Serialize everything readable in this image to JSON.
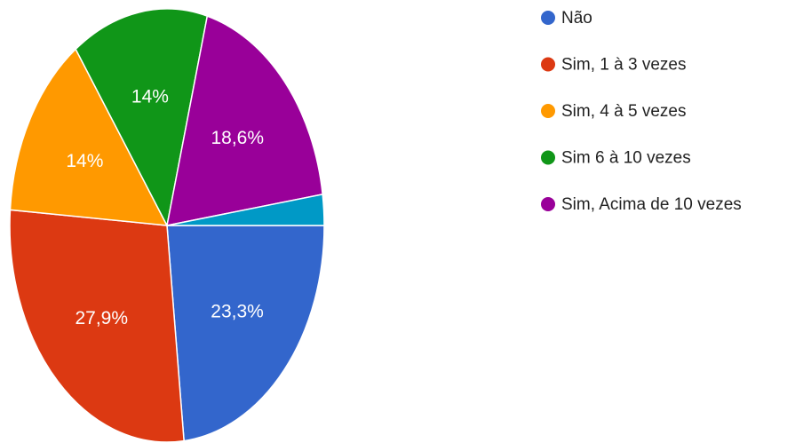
{
  "chart_data": {
    "type": "pie",
    "categories": [
      "Não",
      "Sim, 1 à 3 vezes",
      "Sim, 4 à 5 vezes",
      "Sim 6 à 10 vezes",
      "Sim, Acima de 10 vezes",
      null
    ],
    "values": [
      23.3,
      27.9,
      14,
      14,
      18.6,
      2.3
    ],
    "value_labels": [
      "23,3%",
      "27,9%",
      "14%",
      "14%",
      "18,6%",
      null
    ],
    "colors": [
      "#3366cc",
      "#dc3912",
      "#ff9900",
      "#109618",
      "#990099",
      "#0099c6"
    ]
  }
}
